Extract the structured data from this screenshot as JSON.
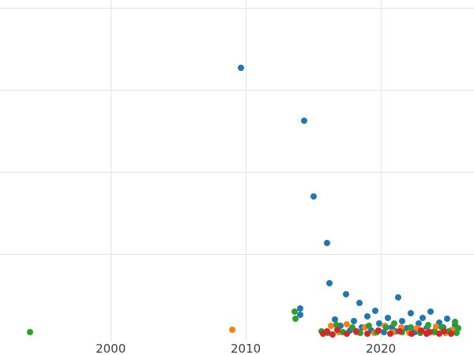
{
  "figure": {
    "background": "#ffffff",
    "grid_color": "#e3e3e3",
    "tick_label_color": "#3d3d3d"
  },
  "chart_data": {
    "type": "scatter",
    "title": "",
    "xlabel": "",
    "ylabel": "",
    "grid": true,
    "legend": "none",
    "x_ticks": [
      2000,
      2010,
      2020
    ],
    "x_tick_labels": [
      "2000",
      "2010",
      "2020"
    ],
    "y_gridlines": [
      1,
      2,
      3,
      4
    ],
    "xlim": [
      1991.8,
      2026.9
    ],
    "ylim": [
      -0.06,
      4.1
    ],
    "series": [
      {
        "name": "series-blue",
        "color": "#1f77b4",
        "points": [
          [
            2009.65,
            3.27
          ],
          [
            2014.3,
            2.63
          ],
          [
            2015.0,
            1.7
          ],
          [
            2016.0,
            1.13
          ],
          [
            2016.2,
            0.64
          ],
          [
            2017.4,
            0.51
          ],
          [
            2018.4,
            0.4
          ],
          [
            2021.3,
            0.47
          ],
          [
            2014.0,
            0.34
          ],
          [
            2014.05,
            0.26
          ],
          [
            2016.6,
            0.2
          ],
          [
            2017.0,
            0.12
          ],
          [
            2017.7,
            0.07
          ],
          [
            2018.0,
            0.18
          ],
          [
            2018.6,
            0.1
          ],
          [
            2019.0,
            0.24
          ],
          [
            2019.3,
            0.07
          ],
          [
            2019.6,
            0.31
          ],
          [
            2019.9,
            0.15
          ],
          [
            2020.2,
            0.05
          ],
          [
            2020.5,
            0.22
          ],
          [
            2020.8,
            0.1
          ],
          [
            2021.1,
            0.06
          ],
          [
            2021.6,
            0.18
          ],
          [
            2021.9,
            0.09
          ],
          [
            2022.2,
            0.28
          ],
          [
            2022.5,
            0.05
          ],
          [
            2022.8,
            0.15
          ],
          [
            2023.1,
            0.22
          ],
          [
            2023.4,
            0.09
          ],
          [
            2023.7,
            0.3
          ],
          [
            2024.0,
            0.06
          ],
          [
            2024.3,
            0.16
          ],
          [
            2024.6,
            0.1
          ],
          [
            2024.9,
            0.21
          ],
          [
            2025.2,
            0.07
          ],
          [
            2025.5,
            0.13
          ]
        ]
      },
      {
        "name": "series-orange",
        "color": "#ff7f0e",
        "points": [
          [
            2009.0,
            0.08
          ],
          [
            2016.3,
            0.12
          ],
          [
            2016.9,
            0.05
          ],
          [
            2017.5,
            0.14
          ],
          [
            2018.2,
            0.05
          ],
          [
            2018.8,
            0.1
          ],
          [
            2019.5,
            0.04
          ],
          [
            2020.3,
            0.12
          ],
          [
            2020.9,
            0.05
          ],
          [
            2021.5,
            0.1
          ],
          [
            2022.1,
            0.04
          ],
          [
            2022.7,
            0.09
          ],
          [
            2023.3,
            0.05
          ],
          [
            2024.1,
            0.11
          ],
          [
            2024.8,
            0.04
          ],
          [
            2025.3,
            0.08
          ]
        ]
      },
      {
        "name": "series-green",
        "color": "#2ca02c",
        "points": [
          [
            1994.0,
            0.05
          ],
          [
            2013.6,
            0.3
          ],
          [
            2013.7,
            0.21
          ],
          [
            2015.6,
            0.06
          ],
          [
            2016.1,
            0.04
          ],
          [
            2016.7,
            0.13
          ],
          [
            2017.2,
            0.05
          ],
          [
            2017.9,
            0.1
          ],
          [
            2018.5,
            0.04
          ],
          [
            2019.1,
            0.12
          ],
          [
            2019.7,
            0.05
          ],
          [
            2020.4,
            0.1
          ],
          [
            2021.0,
            0.15
          ],
          [
            2021.6,
            0.05
          ],
          [
            2022.2,
            0.1
          ],
          [
            2022.9,
            0.04
          ],
          [
            2023.5,
            0.13
          ],
          [
            2024.0,
            0.05
          ],
          [
            2024.5,
            0.1
          ],
          [
            2025.0,
            0.06
          ],
          [
            2025.5,
            0.17
          ],
          [
            2025.7,
            0.09
          ],
          [
            2025.6,
            0.04
          ]
        ]
      },
      {
        "name": "series-red",
        "color": "#d62728",
        "points": [
          [
            2015.7,
            0.03
          ],
          [
            2016.0,
            0.06
          ],
          [
            2016.4,
            0.02
          ],
          [
            2016.8,
            0.08
          ],
          [
            2017.5,
            0.03
          ],
          [
            2018.2,
            0.06
          ],
          [
            2019.0,
            0.03
          ],
          [
            2019.8,
            0.07
          ],
          [
            2020.7,
            0.03
          ],
          [
            2021.4,
            0.06
          ],
          [
            2022.3,
            0.03
          ],
          [
            2023.0,
            0.07
          ],
          [
            2023.4,
            0.03
          ],
          [
            2023.6,
            0.05
          ],
          [
            2024.3,
            0.03
          ],
          [
            2024.7,
            0.06
          ],
          [
            2025.2,
            0.03
          ]
        ]
      }
    ]
  }
}
